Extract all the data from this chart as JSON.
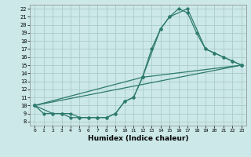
{
  "xlabel": "Humidex (Indice chaleur)",
  "bg_color": "#cce8e8",
  "grid_color": "#aacccc",
  "line_color": "#2d7a6e",
  "xlim": [
    -0.5,
    23.5
  ],
  "ylim": [
    7.5,
    22.5
  ],
  "xticks": [
    0,
    1,
    2,
    3,
    4,
    5,
    6,
    7,
    8,
    9,
    10,
    11,
    12,
    13,
    14,
    15,
    16,
    17,
    18,
    19,
    20,
    21,
    22,
    23
  ],
  "yticks": [
    8,
    9,
    10,
    11,
    12,
    13,
    14,
    15,
    16,
    17,
    18,
    19,
    20,
    21,
    22
  ],
  "curve1_x": [
    0,
    1,
    2,
    3,
    4,
    5,
    6,
    7,
    8,
    9,
    10,
    11,
    12,
    13,
    14,
    15,
    16,
    17,
    18,
    19,
    20,
    21,
    22,
    23
  ],
  "curve1_y": [
    10,
    9,
    9,
    9,
    8.5,
    8.5,
    8.5,
    8.5,
    8.5,
    9,
    10.5,
    11,
    13.5,
    17,
    19.5,
    21,
    22,
    21.5,
    19,
    17,
    16.5,
    16,
    15.5,
    15
  ],
  "curve2_x": [
    0,
    2,
    3,
    4,
    5,
    6,
    7,
    8,
    9,
    10,
    11,
    12,
    14,
    15,
    17,
    19,
    20,
    21,
    22,
    23
  ],
  "curve2_y": [
    10,
    9,
    9,
    9,
    8.5,
    8.5,
    8.5,
    8.5,
    9,
    10.5,
    11,
    13.5,
    19.5,
    21,
    22,
    17,
    16.5,
    16,
    15.5,
    15
  ],
  "curve3_x": [
    0,
    23
  ],
  "curve3_y": [
    10,
    15
  ],
  "curve4_x": [
    0,
    12,
    23
  ],
  "curve4_y": [
    10,
    13.5,
    15
  ]
}
